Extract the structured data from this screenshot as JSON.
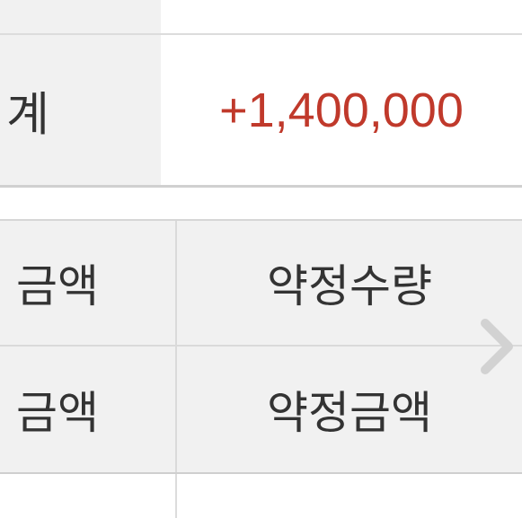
{
  "summary": {
    "label": "계",
    "value": "+1,400,000",
    "value_color": "#c0392b"
  },
  "grid": {
    "rows": [
      {
        "left": "금액",
        "right": "약정수량"
      },
      {
        "left": "금액",
        "right": "약정금액"
      },
      {
        "left": "",
        "right": ""
      }
    ]
  },
  "icons": {
    "next": "chevron-right-icon"
  }
}
